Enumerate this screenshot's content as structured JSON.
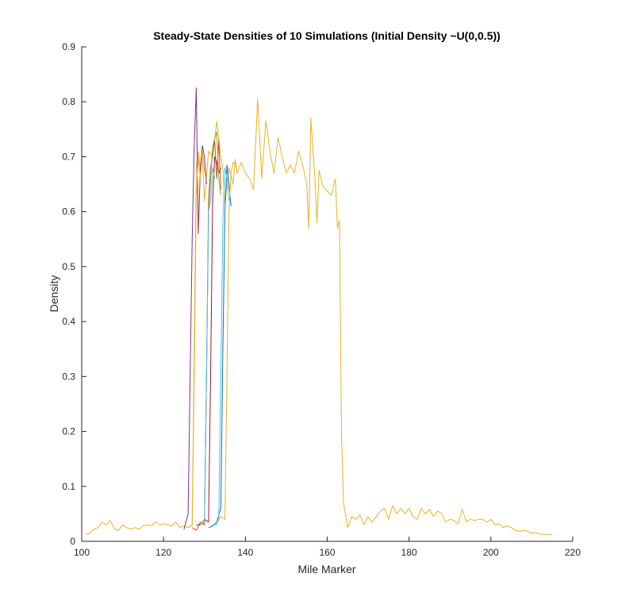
{
  "chart_data": {
    "type": "line",
    "title": "Steady-State Densities of 10 Simulations (Initial Density ~U(0,0.5))",
    "xlabel": "Mile Marker",
    "ylabel": "Density",
    "xlim": [
      100,
      220
    ],
    "ylim": [
      0,
      0.9
    ],
    "xticks": [
      "100",
      "120",
      "140",
      "160",
      "180",
      "200",
      "220"
    ],
    "yticks": [
      "0",
      "0.1",
      "0.2",
      "0.3",
      "0.4",
      "0.5",
      "0.6",
      "0.7",
      "0.8",
      "0.9"
    ],
    "grid": false,
    "legend": "none",
    "series": [
      {
        "color": "#EDB120",
        "points": [
          [
            101,
            0.012
          ],
          [
            102,
            0.015
          ],
          [
            103,
            0.022
          ],
          [
            104,
            0.025
          ],
          [
            105,
            0.035
          ],
          [
            106,
            0.03
          ],
          [
            107,
            0.038
          ],
          [
            108,
            0.022
          ],
          [
            109,
            0.02
          ],
          [
            110,
            0.03
          ],
          [
            111,
            0.025
          ],
          [
            112,
            0.022
          ],
          [
            113,
            0.025
          ],
          [
            114,
            0.022
          ],
          [
            115,
            0.028
          ],
          [
            116,
            0.03
          ],
          [
            117,
            0.028
          ],
          [
            118,
            0.035
          ],
          [
            119,
            0.03
          ],
          [
            120,
            0.032
          ],
          [
            121,
            0.03
          ],
          [
            122,
            0.028
          ],
          [
            123,
            0.035
          ],
          [
            124,
            0.025
          ],
          [
            125,
            0.028
          ],
          [
            126,
            0.025
          ],
          [
            127,
            0.03
          ],
          [
            127.5,
            0.35
          ],
          [
            128,
            0.68
          ],
          [
            128.5,
            0.71
          ],
          [
            129,
            0.68
          ],
          [
            129.5,
            0.7
          ],
          [
            130,
            0.62
          ],
          [
            131,
            0.71
          ],
          [
            132,
            0.7
          ],
          [
            133,
            0.765
          ],
          [
            134,
            0.7
          ],
          [
            134.5,
            0.68
          ],
          [
            135,
            0.615
          ],
          [
            136,
            0.68
          ],
          [
            137,
            0.65
          ],
          [
            137.5,
            0.695
          ],
          [
            138,
            0.67
          ],
          [
            139,
            0.69
          ],
          [
            140,
            0.67
          ],
          [
            141,
            0.66
          ],
          [
            142,
            0.64
          ],
          [
            143,
            0.805
          ],
          [
            144,
            0.66
          ],
          [
            145,
            0.765
          ],
          [
            146,
            0.71
          ],
          [
            147,
            0.67
          ],
          [
            148,
            0.735
          ],
          [
            149,
            0.7
          ],
          [
            150,
            0.67
          ],
          [
            151,
            0.685
          ],
          [
            152,
            0.67
          ],
          [
            153,
            0.71
          ],
          [
            154,
            0.685
          ],
          [
            155,
            0.65
          ],
          [
            155.5,
            0.57
          ],
          [
            156,
            0.77
          ],
          [
            157,
            0.66
          ],
          [
            157.5,
            0.58
          ],
          [
            158,
            0.675
          ],
          [
            159,
            0.645
          ],
          [
            161,
            0.63
          ],
          [
            162,
            0.66
          ],
          [
            162.5,
            0.57
          ],
          [
            163,
            0.585
          ],
          [
            163.5,
            0.19
          ],
          [
            164,
            0.07
          ],
          [
            165,
            0.025
          ],
          [
            166,
            0.045
          ],
          [
            167,
            0.04
          ],
          [
            168,
            0.048
          ],
          [
            169,
            0.03
          ],
          [
            170,
            0.045
          ],
          [
            171,
            0.035
          ],
          [
            172,
            0.045
          ],
          [
            173,
            0.055
          ],
          [
            174,
            0.06
          ],
          [
            175,
            0.04
          ],
          [
            176,
            0.065
          ],
          [
            177,
            0.05
          ],
          [
            178,
            0.06
          ],
          [
            179,
            0.05
          ],
          [
            180,
            0.06
          ],
          [
            181,
            0.045
          ],
          [
            182,
            0.04
          ],
          [
            183,
            0.06
          ],
          [
            184,
            0.05
          ],
          [
            185,
            0.058
          ],
          [
            186,
            0.045
          ],
          [
            187,
            0.055
          ],
          [
            188,
            0.05
          ],
          [
            189,
            0.035
          ],
          [
            190,
            0.04
          ],
          [
            191,
            0.038
          ],
          [
            192,
            0.032
          ],
          [
            193,
            0.058
          ],
          [
            194,
            0.035
          ],
          [
            195,
            0.04
          ],
          [
            196,
            0.038
          ],
          [
            197,
            0.04
          ],
          [
            198,
            0.04
          ],
          [
            199,
            0.035
          ],
          [
            200,
            0.04
          ],
          [
            201,
            0.03
          ],
          [
            202,
            0.032
          ],
          [
            203,
            0.025
          ],
          [
            204,
            0.028
          ],
          [
            205,
            0.025
          ],
          [
            206,
            0.02
          ],
          [
            207,
            0.018
          ],
          [
            208,
            0.02
          ],
          [
            209,
            0.018
          ],
          [
            210,
            0.015
          ],
          [
            211,
            0.016
          ],
          [
            212,
            0.013
          ],
          [
            213,
            0.013
          ],
          [
            214,
            0.012
          ],
          [
            215,
            0.012
          ]
        ]
      },
      {
        "color": "#7E2F8E",
        "points": [
          [
            125,
            0.022
          ],
          [
            126,
            0.05
          ],
          [
            126.5,
            0.3
          ],
          [
            127,
            0.55
          ],
          [
            127.5,
            0.72
          ],
          [
            128,
            0.825
          ],
          [
            128.5,
            0.56
          ],
          [
            129,
            0.68
          ],
          [
            129.5,
            0.72
          ],
          [
            130,
            0.7
          ],
          [
            130.5,
            0.65
          ]
        ]
      },
      {
        "color": "#EDB120",
        "points": [
          [
            126,
            0.025
          ],
          [
            127,
            0.03
          ],
          [
            127.5,
            0.3
          ],
          [
            128,
            0.62
          ],
          [
            128.5,
            0.7
          ],
          [
            129,
            0.66
          ],
          [
            129.5,
            0.71
          ],
          [
            130,
            0.67
          ]
        ]
      },
      {
        "color": "#D95319",
        "points": [
          [
            127,
            0.025
          ],
          [
            128,
            0.02
          ],
          [
            129,
            0.035
          ],
          [
            130,
            0.03
          ],
          [
            130.5,
            0.3
          ],
          [
            131,
            0.62
          ],
          [
            131.5,
            0.68
          ],
          [
            132,
            0.7
          ],
          [
            132.5,
            0.73
          ],
          [
            133,
            0.66
          ],
          [
            133.5,
            0.73
          ],
          [
            134,
            0.64
          ]
        ]
      },
      {
        "color": "#A2142F",
        "points": [
          [
            128,
            0.03
          ],
          [
            129,
            0.03
          ],
          [
            130,
            0.04
          ],
          [
            131,
            0.035
          ],
          [
            131.5,
            0.3
          ],
          [
            132,
            0.62
          ],
          [
            132.5,
            0.7
          ],
          [
            133,
            0.69
          ],
          [
            133.5,
            0.67
          ],
          [
            134,
            0.68
          ]
        ]
      },
      {
        "color": "#77AC30",
        "points": [
          [
            129,
            0.03
          ],
          [
            130,
            0.035
          ],
          [
            130.5,
            0.3
          ],
          [
            131,
            0.6
          ],
          [
            131.5,
            0.66
          ],
          [
            132,
            0.72
          ],
          [
            133,
            0.745
          ],
          [
            133.5,
            0.66
          ],
          [
            134,
            0.63
          ]
        ]
      },
      {
        "color": "#4DBEEE",
        "points": [
          [
            129,
            0.03
          ],
          [
            130,
            0.04
          ],
          [
            130.5,
            0.3
          ],
          [
            131,
            0.6
          ],
          [
            131.5,
            0.62
          ],
          [
            132,
            0.68
          ],
          [
            132.5,
            0.66
          ]
        ]
      },
      {
        "color": "#0072BD",
        "points": [
          [
            131,
            0.025
          ],
          [
            132,
            0.028
          ],
          [
            133,
            0.035
          ],
          [
            134,
            0.06
          ],
          [
            134.5,
            0.35
          ],
          [
            135,
            0.6
          ],
          [
            135.5,
            0.685
          ],
          [
            136,
            0.65
          ],
          [
            136.5,
            0.61
          ]
        ]
      },
      {
        "color": "#4DBEEE",
        "points": [
          [
            132,
            0.03
          ],
          [
            133,
            0.03
          ],
          [
            133.5,
            0.04
          ],
          [
            134,
            0.3
          ],
          [
            134.5,
            0.58
          ],
          [
            135,
            0.68
          ],
          [
            135.5,
            0.66
          ],
          [
            136,
            0.62
          ]
        ]
      },
      {
        "color": "#EDB120",
        "points": [
          [
            133,
            0.035
          ],
          [
            134,
            0.045
          ],
          [
            135,
            0.04
          ],
          [
            135.5,
            0.3
          ],
          [
            136,
            0.6
          ],
          [
            136.5,
            0.67
          ],
          [
            137,
            0.69
          ],
          [
            138,
            0.68
          ]
        ]
      }
    ]
  }
}
